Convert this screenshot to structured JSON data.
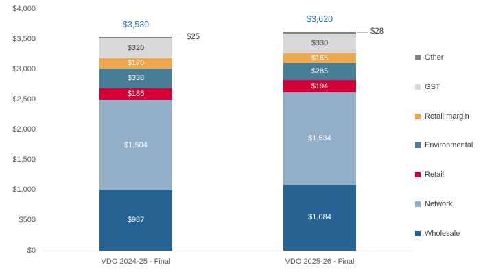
{
  "chart_data": {
    "type": "bar",
    "stacked": true,
    "title": "",
    "categories": [
      "VDO 2024-25 - Final",
      "VDO 2025-26 - Final"
    ],
    "series": [
      {
        "name": "Wholesale",
        "color": "#266394",
        "label_color": "#ffffff",
        "values": [
          987,
          1084
        ],
        "labels": [
          "$987",
          "$1,084"
        ]
      },
      {
        "name": "Network",
        "color": "#92AFC7",
        "label_color": "#ffffff",
        "values": [
          1504,
          1534
        ],
        "labels": [
          "$1,504",
          "$1,534"
        ]
      },
      {
        "name": "Retail",
        "color": "#D40038",
        "label_color": "#ffffff",
        "values": [
          186,
          194
        ],
        "labels": [
          "$186",
          "$194"
        ]
      },
      {
        "name": "Environmental",
        "color": "#477D96",
        "label_color": "#ffffff",
        "values": [
          338,
          285
        ],
        "labels": [
          "$338",
          "$285"
        ]
      },
      {
        "name": "Retail margin",
        "color": "#F0A64C",
        "label_color": "#ffffff",
        "values": [
          170,
          165
        ],
        "labels": [
          "$170",
          "$165"
        ]
      },
      {
        "name": "GST",
        "color": "#D9D9D9",
        "label_color": "#404040",
        "values": [
          320,
          330
        ],
        "labels": [
          "$320",
          "$330"
        ]
      },
      {
        "name": "Other",
        "color": "#7F7F7F",
        "label_color": null,
        "values": [
          25,
          28
        ],
        "labels": [
          "$25",
          "$28"
        ],
        "callout": true
      }
    ],
    "totals": {
      "values": [
        3530,
        3620
      ],
      "labels": [
        "$3,530",
        "$3,620"
      ],
      "color": "#2E75B6"
    },
    "y_axis": {
      "min": 0,
      "max": 4000,
      "step": 500,
      "tick_labels": [
        "$0",
        "$500",
        "$1,000",
        "$1,500",
        "$2,000",
        "$2,500",
        "$3,000",
        "$3,500",
        "$4,000"
      ]
    },
    "legend": {
      "position": "right",
      "items_top_to_bottom": [
        "Other",
        "GST",
        "Retail margin",
        "Environmental",
        "Retail",
        "Network",
        "Wholesale"
      ]
    },
    "grid": false,
    "xlabel": "",
    "ylabel": ""
  }
}
